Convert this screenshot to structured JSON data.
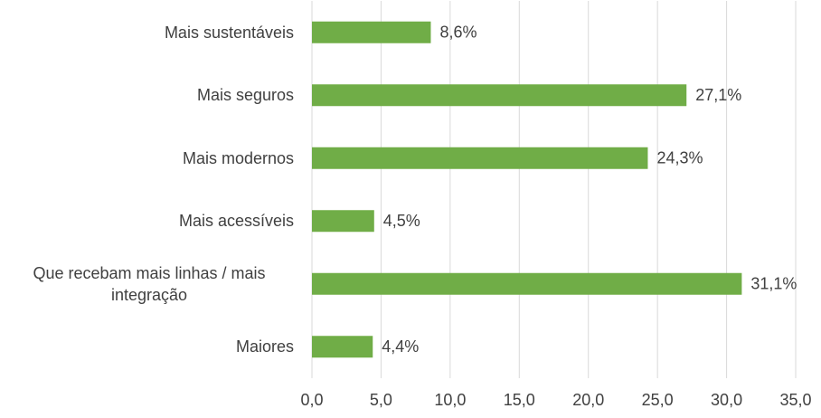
{
  "chart_data": {
    "type": "bar",
    "orientation": "horizontal",
    "categories": [
      "Mais sustentáveis",
      "Mais seguros",
      "Mais modernos",
      "Mais acessíveis",
      "Que recebam mais linhas / mais integração",
      "Maiores"
    ],
    "values": [
      8.6,
      27.1,
      24.3,
      4.5,
      31.1,
      4.4
    ],
    "value_labels": [
      "8,6%",
      "27,1%",
      "24,3%",
      "4,5%",
      "31,1%",
      "4,4%"
    ],
    "color": "#70ad47",
    "xlim": [
      0,
      35
    ],
    "xticks": [
      {
        "value": 0,
        "label": "0,0"
      },
      {
        "value": 5,
        "label": "5,0"
      },
      {
        "value": 10,
        "label": "10,0"
      },
      {
        "value": 15,
        "label": "15,0"
      },
      {
        "value": 20,
        "label": "20,0"
      },
      {
        "value": 25,
        "label": "25,0"
      },
      {
        "value": 30,
        "label": "30,0"
      },
      {
        "value": 35,
        "label": "35,0"
      }
    ],
    "grid": true
  }
}
